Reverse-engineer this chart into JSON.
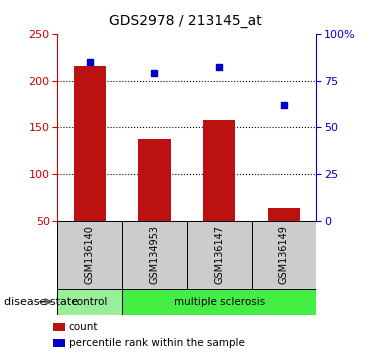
{
  "title": "GDS2978 / 213145_at",
  "samples": [
    "GSM136140",
    "GSM134953",
    "GSM136147",
    "GSM136149"
  ],
  "counts": [
    215,
    138,
    158,
    64
  ],
  "percentiles": [
    85,
    79,
    82,
    62
  ],
  "ylim_left": [
    50,
    250
  ],
  "ylim_right": [
    0,
    100
  ],
  "yticks_left": [
    50,
    100,
    150,
    200,
    250
  ],
  "yticks_right": [
    0,
    25,
    50,
    75,
    100
  ],
  "yticklabels_right": [
    "0",
    "25",
    "50",
    "75",
    "100%"
  ],
  "bar_color": "#bb1111",
  "dot_color": "#0000cc",
  "sample_box_color": "#cccccc",
  "control_color": "#99ee99",
  "ms_color": "#44ee44",
  "label_disease_state": "disease state",
  "label_control": "control",
  "label_ms": "multiple sclerosis",
  "legend_count": "count",
  "legend_percentile": "percentile rank within the sample",
  "bar_width": 0.5,
  "grid_lines": [
    100,
    150,
    200
  ]
}
